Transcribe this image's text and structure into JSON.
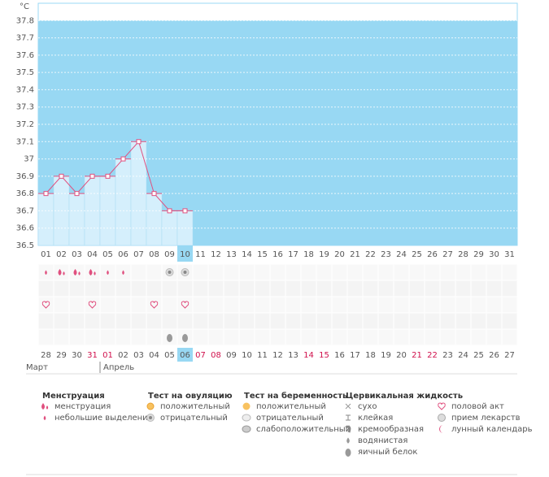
{
  "chart_data": {
    "type": "line",
    "unit": "°C",
    "categories": [
      "01",
      "02",
      "03",
      "04",
      "05",
      "06",
      "07",
      "08",
      "09",
      "10",
      "11",
      "12",
      "13",
      "14",
      "15",
      "16",
      "17",
      "18",
      "19",
      "20",
      "21",
      "22",
      "23",
      "24",
      "25",
      "26",
      "27",
      "28",
      "29",
      "30",
      "31"
    ],
    "values": [
      36.8,
      36.9,
      36.8,
      36.9,
      36.9,
      37.0,
      37.1,
      36.8,
      36.7,
      36.7,
      null,
      null,
      null,
      null,
      null,
      null,
      null,
      null,
      null,
      null,
      null,
      null,
      null,
      null,
      null,
      null,
      null,
      null,
      null,
      null,
      null
    ],
    "selected": "10",
    "color": "#e0507f",
    "ylim": [
      36.5,
      37.9
    ],
    "yticks": [
      36.5,
      36.6,
      36.7,
      36.8,
      36.9,
      37,
      37.1,
      37.2,
      37.3,
      37.4,
      37.5,
      37.6,
      37.7,
      37.8
    ]
  },
  "calendar": {
    "days": [
      "28",
      "29",
      "30",
      "31",
      "01",
      "02",
      "03",
      "04",
      "05",
      "06",
      "07",
      "08",
      "09",
      "10",
      "11",
      "12",
      "13",
      "14",
      "15",
      "16",
      "17",
      "18",
      "19",
      "20",
      "21",
      "22",
      "23",
      "24",
      "25",
      "26",
      "27"
    ],
    "red": [
      false,
      false,
      false,
      true,
      true,
      false,
      false,
      false,
      false,
      false,
      true,
      true,
      false,
      false,
      false,
      false,
      false,
      true,
      true,
      false,
      false,
      false,
      false,
      false,
      true,
      true,
      false,
      false,
      false,
      false,
      false
    ],
    "selected": "06",
    "months": [
      "Март",
      "Апрель"
    ],
    "month_start": 4
  },
  "legend": [
    {
      "title": "Менструация",
      "items": [
        {
          "label": "менструация",
          "days": [
            "02",
            "03",
            "04"
          ]
        },
        {
          "label": "небольшие выделения",
          "days": [
            "01",
            "05",
            "06"
          ]
        }
      ]
    },
    {
      "title": "Тест на овуляцию",
      "items": [
        {
          "label": "положительный",
          "days": []
        },
        {
          "label": "отрицательный",
          "days": [
            "09",
            "10"
          ]
        }
      ]
    },
    {
      "title": "Тест на беременность",
      "items": [
        {
          "label": "положительный",
          "days": []
        },
        {
          "label": "отрицательный",
          "days": []
        },
        {
          "label": "слабоположительный",
          "days": []
        }
      ]
    },
    {
      "title": "Цервикальная жидкость",
      "items": [
        {
          "label": "сухо",
          "days": []
        },
        {
          "label": "клейкая",
          "days": []
        },
        {
          "label": "кремообразная",
          "days": []
        },
        {
          "label": "водянистая",
          "days": []
        },
        {
          "label": "яичный белок",
          "days": [
            "09",
            "10"
          ]
        }
      ]
    },
    {
      "items": [
        {
          "label": "половой акт",
          "days": [
            "01",
            "04",
            "08",
            "10"
          ]
        },
        {
          "label": "прием лекарств",
          "days": []
        },
        {
          "label": "лунный календарь",
          "days": []
        }
      ]
    }
  ]
}
